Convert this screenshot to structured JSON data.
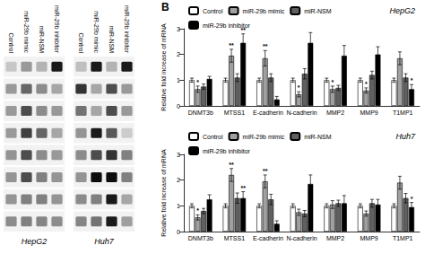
{
  "chart_data": [
    {
      "type": "heatmap",
      "title": "HepG2",
      "categories": [
        "Control",
        "miR-29b mimic",
        "miR-NSM",
        "miR-29b inhibitor"
      ],
      "cells": [
        [
          0.78,
          0.6,
          0.7,
          0.1
        ],
        [
          0.6,
          0.4,
          0.55,
          0.65
        ],
        [
          0.6,
          0.3,
          0.55,
          0.6
        ],
        [
          0.6,
          0.25,
          0.4,
          0.65
        ],
        [
          0.58,
          0.3,
          0.55,
          0.6
        ],
        [
          0.58,
          0.3,
          0.5,
          0.58
        ],
        [
          0.58,
          0.5,
          0.5,
          0.58
        ],
        [
          0.55,
          0.5,
          0.52,
          0.55
        ]
      ]
    },
    {
      "type": "heatmap",
      "title": "Huh7",
      "categories": [
        "Control",
        "miR-29b mimic",
        "miR-NSM",
        "miR-29b inhibitor"
      ],
      "cells": [
        [
          0.75,
          0.1,
          0.7,
          0.1
        ],
        [
          0.2,
          0.65,
          0.3,
          0.6
        ],
        [
          0.45,
          0.65,
          0.3,
          0.6
        ],
        [
          0.58,
          0.1,
          0.35,
          0.8
        ],
        [
          0.55,
          0.3,
          0.2,
          0.5
        ],
        [
          0.58,
          0.05,
          0.05,
          0.5
        ],
        [
          0.55,
          0.5,
          0.1,
          0.65
        ],
        [
          0.52,
          0.45,
          0.1,
          0.62
        ]
      ]
    },
    {
      "type": "bar",
      "title": "HepG2",
      "categories": [
        "DNMT3b",
        "MTSS1",
        "E-cadherin",
        "N-cadherin",
        "MMP2",
        "MMP9",
        "T1MP1"
      ],
      "ylabel": "Relative fold increase of mRNA",
      "ylim": [
        0,
        3
      ],
      "yticks": [
        0,
        1,
        2,
        3
      ],
      "grid": false,
      "legend": "upper left",
      "series": [
        {
          "name": "Control",
          "color": "#ffffff",
          "values": [
            1.0,
            1.0,
            1.0,
            1.0,
            1.0,
            1.0,
            1.0
          ],
          "errors": [
            0.08,
            0.08,
            0.08,
            0.08,
            0.08,
            0.08,
            0.08
          ]
        },
        {
          "name": "miR-29b mimic",
          "color": "#a0a0a0",
          "values": [
            0.65,
            1.95,
            1.85,
            0.45,
            0.65,
            0.6,
            1.85
          ],
          "errors": [
            0.12,
            0.25,
            0.3,
            0.1,
            0.12,
            0.1,
            0.25
          ]
        },
        {
          "name": "miR-NSM",
          "color": "#606060",
          "values": [
            0.75,
            1.1,
            1.1,
            1.25,
            0.7,
            1.2,
            1.1
          ],
          "errors": [
            0.1,
            0.15,
            0.15,
            0.2,
            0.1,
            0.15,
            0.15
          ]
        },
        {
          "name": "miR-29b inhibitor",
          "color": "#000000",
          "values": [
            1.05,
            2.45,
            0.25,
            2.45,
            1.95,
            2.0,
            0.65
          ],
          "errors": [
            0.1,
            0.35,
            0.12,
            0.4,
            0.4,
            0.3,
            0.18
          ]
        }
      ],
      "annotations": [
        {
          "text": "B"
        },
        {
          "category": "MTSS1",
          "series": "miR-29b mimic",
          "text": "**"
        },
        {
          "category": "MTSS1",
          "series": "miR-29b inhibitor",
          "text": "**"
        },
        {
          "category": "E-cadherin",
          "series": "miR-29b mimic",
          "text": "**"
        },
        {
          "category": "DNMT3b",
          "series": "miR-29b mimic",
          "text": "*"
        },
        {
          "category": "N-cadherin",
          "series": "miR-29b mimic",
          "text": "*"
        },
        {
          "category": "MMP2",
          "series": "miR-29b mimic",
          "text": "*"
        },
        {
          "category": "MMP9",
          "series": "miR-29b mimic",
          "text": "*"
        },
        {
          "category": "T1MP1",
          "series": "miR-29b inhibitor",
          "text": "*"
        }
      ]
    },
    {
      "type": "bar",
      "title": "Huh7",
      "categories": [
        "DNMT3b",
        "MTSS1",
        "E-cadherin",
        "N-cadherin",
        "MMP2",
        "MMP9",
        "T1MP1"
      ],
      "ylabel": "Relative fold increase of mRNA",
      "ylim": [
        0,
        3
      ],
      "yticks": [
        0,
        1,
        2,
        3
      ],
      "grid": false,
      "legend": "upper left",
      "series": [
        {
          "name": "Control",
          "color": "#ffffff",
          "values": [
            1.0,
            1.0,
            1.0,
            1.0,
            1.0,
            1.0,
            1.0
          ],
          "errors": [
            0.08,
            0.08,
            0.08,
            0.08,
            0.08,
            0.08,
            0.08
          ]
        },
        {
          "name": "miR-29b mimic",
          "color": "#a0a0a0",
          "values": [
            0.55,
            2.2,
            1.95,
            0.75,
            1.05,
            0.7,
            1.9
          ],
          "errors": [
            0.1,
            0.25,
            0.25,
            0.12,
            0.15,
            0.1,
            0.25
          ]
        },
        {
          "name": "miR-NSM",
          "color": "#606060",
          "values": [
            0.8,
            1.3,
            1.25,
            0.7,
            1.1,
            1.1,
            1.3
          ],
          "errors": [
            0.1,
            0.2,
            0.2,
            0.12,
            0.12,
            0.15,
            0.18
          ]
        },
        {
          "name": "miR-29b inhibitor",
          "color": "#000000",
          "values": [
            1.25,
            1.3,
            0.3,
            1.85,
            1.1,
            1.05,
            0.95
          ],
          "errors": [
            0.18,
            0.25,
            0.12,
            0.35,
            0.3,
            0.2,
            0.18
          ]
        }
      ],
      "annotations": [
        {
          "category": "MTSS1",
          "series": "miR-29b mimic",
          "text": "**"
        },
        {
          "category": "MTSS1",
          "series": "miR-29b inhibitor",
          "text": "**"
        },
        {
          "category": "E-cadherin",
          "series": "miR-29b mimic",
          "text": "**"
        },
        {
          "category": "DNMT3b",
          "series": "miR-29b mimic",
          "text": "*"
        },
        {
          "category": "T1MP1",
          "series": "miR-29b inhibitor",
          "text": "*"
        }
      ]
    }
  ]
}
